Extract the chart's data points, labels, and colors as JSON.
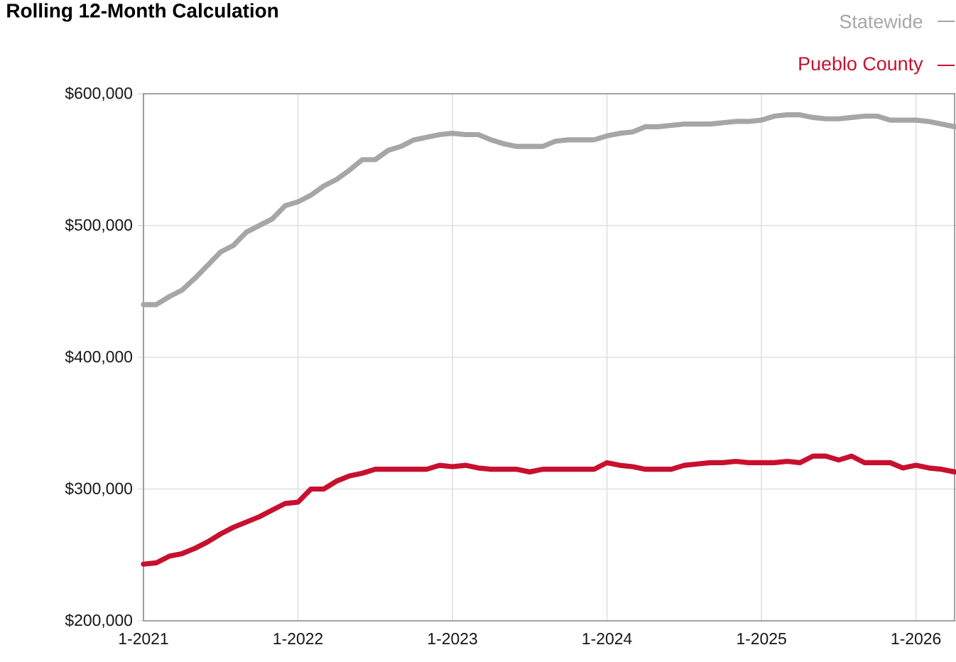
{
  "chart_data": {
    "type": "line",
    "title": "Rolling 12-Month Calculation",
    "x": [
      "2021-01",
      "2021-02",
      "2021-03",
      "2021-04",
      "2021-05",
      "2021-06",
      "2021-07",
      "2021-08",
      "2021-09",
      "2021-10",
      "2021-11",
      "2021-12",
      "2022-01",
      "2022-02",
      "2022-03",
      "2022-04",
      "2022-05",
      "2022-06",
      "2022-07",
      "2022-08",
      "2022-09",
      "2022-10",
      "2022-11",
      "2022-12",
      "2023-01",
      "2023-02",
      "2023-03",
      "2023-04",
      "2023-05",
      "2023-06",
      "2023-07",
      "2023-08",
      "2023-09",
      "2023-10",
      "2023-11",
      "2023-12",
      "2024-01",
      "2024-02",
      "2024-03",
      "2024-04",
      "2024-05",
      "2024-06",
      "2024-07",
      "2024-08",
      "2024-09",
      "2024-10",
      "2024-11",
      "2024-12",
      "2025-01",
      "2025-02",
      "2025-03",
      "2025-04",
      "2025-05",
      "2025-06",
      "2025-07",
      "2025-08",
      "2025-09",
      "2025-10",
      "2025-11",
      "2025-12",
      "2026-01",
      "2026-02",
      "2026-03",
      "2026-04"
    ],
    "series": [
      {
        "name": "Statewide",
        "color": "#a6a6a6",
        "values": [
          440000,
          440000,
          446000,
          451000,
          460000,
          470000,
          480000,
          485000,
          495000,
          500000,
          505000,
          515000,
          518000,
          523000,
          530000,
          535000,
          542000,
          550000,
          550000,
          557000,
          560000,
          565000,
          567000,
          569000,
          570000,
          569000,
          569000,
          565000,
          562000,
          560000,
          560000,
          560000,
          564000,
          565000,
          565000,
          565000,
          568000,
          570000,
          571000,
          575000,
          575000,
          576000,
          577000,
          577000,
          577000,
          578000,
          579000,
          579000,
          580000,
          583000,
          584000,
          584000,
          582000,
          581000,
          581000,
          582000,
          583000,
          583000,
          580000,
          580000,
          580000,
          579000,
          577000,
          575000
        ]
      },
      {
        "name": "Pueblo County",
        "color": "#c8102e",
        "values": [
          243000,
          244000,
          249000,
          251000,
          255000,
          260000,
          266000,
          271000,
          275000,
          279000,
          284000,
          289000,
          290000,
          300000,
          300000,
          306000,
          310000,
          312000,
          315000,
          315000,
          315000,
          315000,
          315000,
          318000,
          317000,
          318000,
          316000,
          315000,
          315000,
          315000,
          313000,
          315000,
          315000,
          315000,
          315000,
          315000,
          320000,
          318000,
          317000,
          315000,
          315000,
          315000,
          318000,
          319000,
          320000,
          320000,
          321000,
          320000,
          320000,
          320000,
          321000,
          320000,
          325000,
          325000,
          322000,
          325000,
          320000,
          320000,
          320000,
          316000,
          318000,
          316000,
          315000,
          313000
        ]
      }
    ],
    "xlim": [
      "2021-01",
      "2026-04"
    ],
    "xticks": [
      {
        "value": "2021-01",
        "label": "1-2021"
      },
      {
        "value": "2022-01",
        "label": "1-2022"
      },
      {
        "value": "2023-01",
        "label": "1-2023"
      },
      {
        "value": "2024-01",
        "label": "1-2024"
      },
      {
        "value": "2025-01",
        "label": "1-2025"
      },
      {
        "value": "2026-01",
        "label": "1-2026"
      }
    ],
    "ylim": [
      200000,
      600000
    ],
    "yticks": [
      {
        "value": 200000,
        "label": "$200,000"
      },
      {
        "value": 300000,
        "label": "$300,000"
      },
      {
        "value": 400000,
        "label": "$400,000"
      },
      {
        "value": 500000,
        "label": "$500,000"
      },
      {
        "value": 600000,
        "label": "$600,000"
      }
    ],
    "grid": true,
    "legend": "top right",
    "marker": "none",
    "line_style": "solid"
  }
}
